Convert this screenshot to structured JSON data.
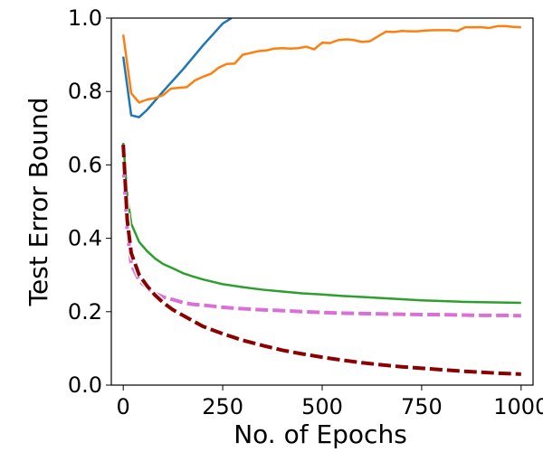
{
  "chart_data": {
    "type": "line",
    "title": "",
    "xlabel": "No. of Epochs",
    "ylabel": "Test Error Bound",
    "xlim": [
      -30,
      1030
    ],
    "ylim": [
      0,
      1.0
    ],
    "xticks": [
      0,
      250,
      500,
      750,
      1000
    ],
    "xtick_labels": [
      "0",
      "250",
      "500",
      "750",
      "1000"
    ],
    "yticks": [
      0.0,
      0.2,
      0.4,
      0.6,
      0.8,
      1.0
    ],
    "ytick_labels": [
      "0.0",
      "0.2",
      "0.4",
      "0.6",
      "0.8",
      "1.0"
    ],
    "grid": false,
    "legend": "none",
    "series": [
      {
        "color": "#1f77b4",
        "style": "solid",
        "x": [
          0,
          20,
          40,
          60,
          100,
          150,
          200,
          250,
          272
        ],
        "y": [
          0.895,
          0.735,
          0.73,
          0.75,
          0.8,
          0.86,
          0.925,
          0.985,
          1.0
        ]
      },
      {
        "color": "#ff7f0e",
        "style": "solid",
        "x": [
          0,
          20,
          40,
          60,
          80,
          100,
          120,
          140,
          160,
          180,
          200,
          220,
          240,
          260,
          280,
          300,
          320,
          340,
          360,
          380,
          400,
          420,
          440,
          460,
          480,
          500,
          520,
          540,
          560,
          580,
          600,
          620,
          640,
          660,
          680,
          700,
          720,
          740,
          760,
          780,
          800,
          820,
          840,
          860,
          880,
          900,
          920,
          940,
          960,
          980,
          1000
        ],
        "y": [
          0.955,
          0.795,
          0.77,
          0.778,
          0.782,
          0.79,
          0.808,
          0.81,
          0.812,
          0.83,
          0.84,
          0.848,
          0.865,
          0.875,
          0.876,
          0.9,
          0.905,
          0.91,
          0.912,
          0.917,
          0.918,
          0.917,
          0.918,
          0.922,
          0.915,
          0.933,
          0.932,
          0.94,
          0.942,
          0.94,
          0.935,
          0.937,
          0.95,
          0.963,
          0.962,
          0.965,
          0.964,
          0.964,
          0.966,
          0.967,
          0.967,
          0.967,
          0.965,
          0.975,
          0.975,
          0.975,
          0.973,
          0.978,
          0.978,
          0.976,
          0.975
        ]
      },
      {
        "color": "#2ca02c",
        "style": "solid",
        "x": [
          0,
          10,
          20,
          40,
          60,
          80,
          100,
          125,
          150,
          175,
          200,
          250,
          300,
          350,
          400,
          450,
          500,
          550,
          600,
          650,
          700,
          750,
          800,
          850,
          900,
          950,
          1000
        ],
        "y": [
          0.66,
          0.52,
          0.44,
          0.39,
          0.365,
          0.345,
          0.33,
          0.318,
          0.305,
          0.296,
          0.288,
          0.275,
          0.267,
          0.26,
          0.255,
          0.25,
          0.247,
          0.243,
          0.24,
          0.237,
          0.234,
          0.231,
          0.229,
          0.227,
          0.226,
          0.225,
          0.224
        ]
      },
      {
        "color": "#da70d6",
        "style": "dashed",
        "x": [
          0,
          10,
          20,
          40,
          60,
          80,
          100,
          125,
          150,
          175,
          200,
          250,
          300,
          350,
          400,
          450,
          500,
          550,
          600,
          650,
          700,
          750,
          800,
          850,
          900,
          950,
          1000
        ],
        "y": [
          0.6,
          0.42,
          0.33,
          0.285,
          0.265,
          0.25,
          0.24,
          0.233,
          0.225,
          0.22,
          0.218,
          0.212,
          0.208,
          0.205,
          0.203,
          0.2,
          0.198,
          0.196,
          0.195,
          0.194,
          0.193,
          0.192,
          0.192,
          0.191,
          0.19,
          0.19,
          0.189
        ]
      },
      {
        "color": "#ffffff",
        "style": "dashed",
        "x": [
          0,
          10,
          20,
          40,
          60,
          80,
          100,
          125,
          150,
          175,
          200,
          250,
          300,
          350,
          400,
          450,
          500,
          550,
          600,
          650,
          700,
          750,
          800,
          850,
          900,
          950,
          1000
        ],
        "y": [
          0.655,
          0.45,
          0.36,
          0.3,
          0.27,
          0.245,
          0.225,
          0.205,
          0.19,
          0.175,
          0.16,
          0.14,
          0.122,
          0.108,
          0.095,
          0.085,
          0.076,
          0.068,
          0.061,
          0.055,
          0.05,
          0.046,
          0.042,
          0.038,
          0.035,
          0.032,
          0.03
        ]
      },
      {
        "color": "#8b0000",
        "style": "dashed",
        "x": [
          0,
          10,
          20,
          40,
          60,
          80,
          100,
          125,
          150,
          175,
          200,
          250,
          300,
          350,
          400,
          450,
          500,
          550,
          600,
          650,
          700,
          750,
          800,
          850,
          900,
          950,
          1000
        ],
        "y": [
          0.655,
          0.45,
          0.36,
          0.3,
          0.27,
          0.245,
          0.225,
          0.205,
          0.19,
          0.175,
          0.16,
          0.14,
          0.122,
          0.108,
          0.095,
          0.085,
          0.076,
          0.068,
          0.061,
          0.055,
          0.05,
          0.046,
          0.042,
          0.038,
          0.035,
          0.032,
          0.03
        ]
      }
    ]
  }
}
